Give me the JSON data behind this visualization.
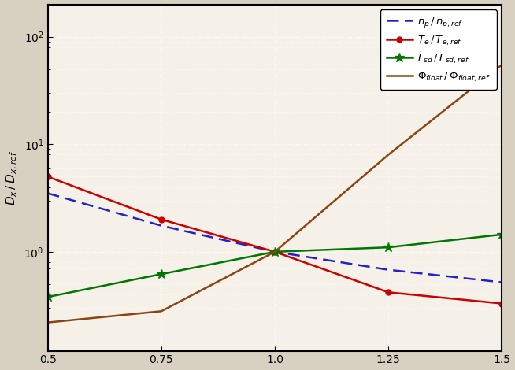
{
  "x": [
    0.5,
    0.75,
    1.0,
    1.25,
    1.5
  ],
  "n_p": [
    3.5,
    1.75,
    1.0,
    0.68,
    0.52
  ],
  "T_e": [
    5.0,
    2.0,
    1.0,
    0.42,
    0.33
  ],
  "F_sd": [
    0.38,
    0.62,
    1.0,
    1.1,
    1.45
  ],
  "Phi_float": [
    0.22,
    0.28,
    1.0,
    8.0,
    55.0
  ],
  "n_p_color": "#2222cc",
  "T_e_color": "#cc0000",
  "F_sd_color": "#007700",
  "Phi_float_color": "#8B4513",
  "xlim": [
    0.5,
    1.5
  ],
  "ylim": [
    0.12,
    200
  ],
  "xticks": [
    0.5,
    0.75,
    1.0,
    1.25,
    1.5
  ],
  "ylabel": "$D_x\\,/\\,D_{x,ref}$",
  "plot_bg": "#f5f0e8",
  "fig_bg": "#d8d0c0",
  "grid_color": "#ffffff",
  "grid_minor_color": "#e0dbd0"
}
